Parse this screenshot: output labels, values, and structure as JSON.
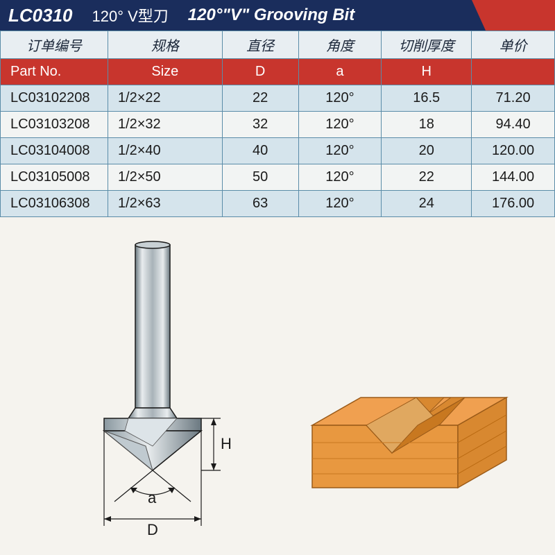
{
  "header": {
    "product_code": "LC0310",
    "chinese_title": "120°  V型刀",
    "english_title": "120°\"V\" Grooving Bit"
  },
  "table": {
    "columns_cn": [
      "订单编号",
      "规格",
      "直径",
      "角度",
      "切削厚度",
      "单价"
    ],
    "columns_en": [
      "Part No.",
      "Size",
      "D",
      "a",
      "H",
      ""
    ],
    "rows": [
      [
        "LC03102208",
        "1/2×22",
        "22",
        "120°",
        "16.5",
        "71.20"
      ],
      [
        "LC03103208",
        "1/2×32",
        "32",
        "120°",
        "18",
        "94.40"
      ],
      [
        "LC03104008",
        "1/2×40",
        "40",
        "120°",
        "20",
        "120.00"
      ],
      [
        "LC03105008",
        "1/2×50",
        "50",
        "120°",
        "22",
        "144.00"
      ],
      [
        "LC03106308",
        "1/2×63",
        "63",
        "120°",
        "24",
        "176.00"
      ]
    ]
  },
  "diagram": {
    "labels": {
      "H": "H",
      "a": "a",
      "D": "D"
    },
    "colors": {
      "shank_light": "#d8dde0",
      "shank_mid": "#a8b2b8",
      "shank_dark": "#6a7880",
      "cutter_light": "#e8ecee",
      "cutter_dark": "#8a98a0",
      "wood_top": "#f0a050",
      "wood_side": "#d88830",
      "wood_front": "#e89840",
      "dim_line": "#1a1a1a"
    }
  }
}
